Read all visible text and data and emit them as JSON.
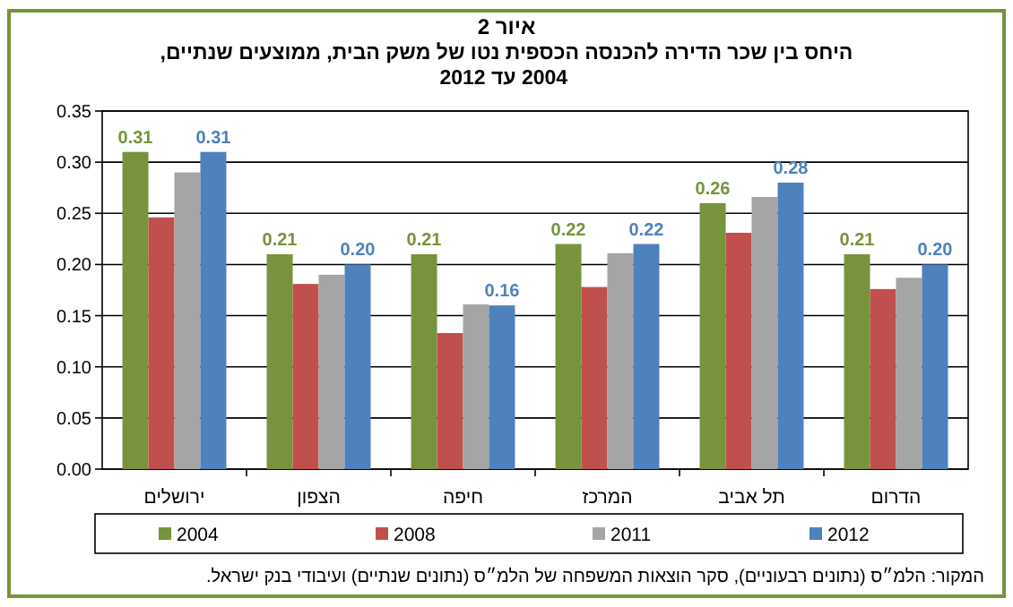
{
  "chart_data": {
    "type": "bar",
    "title": "איור 2",
    "subtitle": "היחס בין שכר הדירה להכנסה הכספית נטו של משק הבית, ממוצעים שנתיים, 2004 עד 2012",
    "categories": [
      "ירושלים",
      "הצפון",
      "חיפה",
      "המרכז",
      "תל אביב",
      "הדרום"
    ],
    "series": [
      {
        "name": "2004",
        "color": "#77933c",
        "values": [
          0.31,
          0.21,
          0.21,
          0.22,
          0.26,
          0.21
        ],
        "value_labels": [
          "0.31",
          "0.21",
          "0.21",
          "0.22",
          "0.26",
          "0.21"
        ]
      },
      {
        "name": "2008",
        "color": "#c0504d",
        "values": [
          0.246,
          0.181,
          0.133,
          0.178,
          0.231,
          0.176
        ]
      },
      {
        "name": "2011",
        "color": "#a5a5a5",
        "values": [
          0.29,
          0.19,
          0.161,
          0.211,
          0.266,
          0.187
        ]
      },
      {
        "name": "2012",
        "color": "#4f81bd",
        "values": [
          0.31,
          0.2,
          0.16,
          0.22,
          0.28,
          0.2
        ],
        "value_labels": [
          "0.31",
          "0.20",
          "0.16",
          "0.22",
          "0.28",
          "0.20"
        ]
      }
    ],
    "ylim": [
      0,
      0.35
    ],
    "yticks": [
      {
        "value": 0,
        "label": "0.00"
      },
      {
        "value": 0.05,
        "label": "0.05"
      },
      {
        "value": 0.1,
        "label": "0.10"
      },
      {
        "value": 0.15,
        "label": "0.15"
      },
      {
        "value": 0.2,
        "label": "0.20"
      },
      {
        "value": 0.25,
        "label": "0.25"
      },
      {
        "value": 0.3,
        "label": "0.30"
      },
      {
        "value": 0.35,
        "label": "0.35"
      }
    ],
    "grid": "y",
    "legend": "bottom",
    "annotations": [
      "המקור: הלמ״ס (נתונים רבעוניים), סקר הוצאות המשפחה של הלמ״ס (נתונים שנתיים) ועיבודי בנק ישראל."
    ]
  }
}
